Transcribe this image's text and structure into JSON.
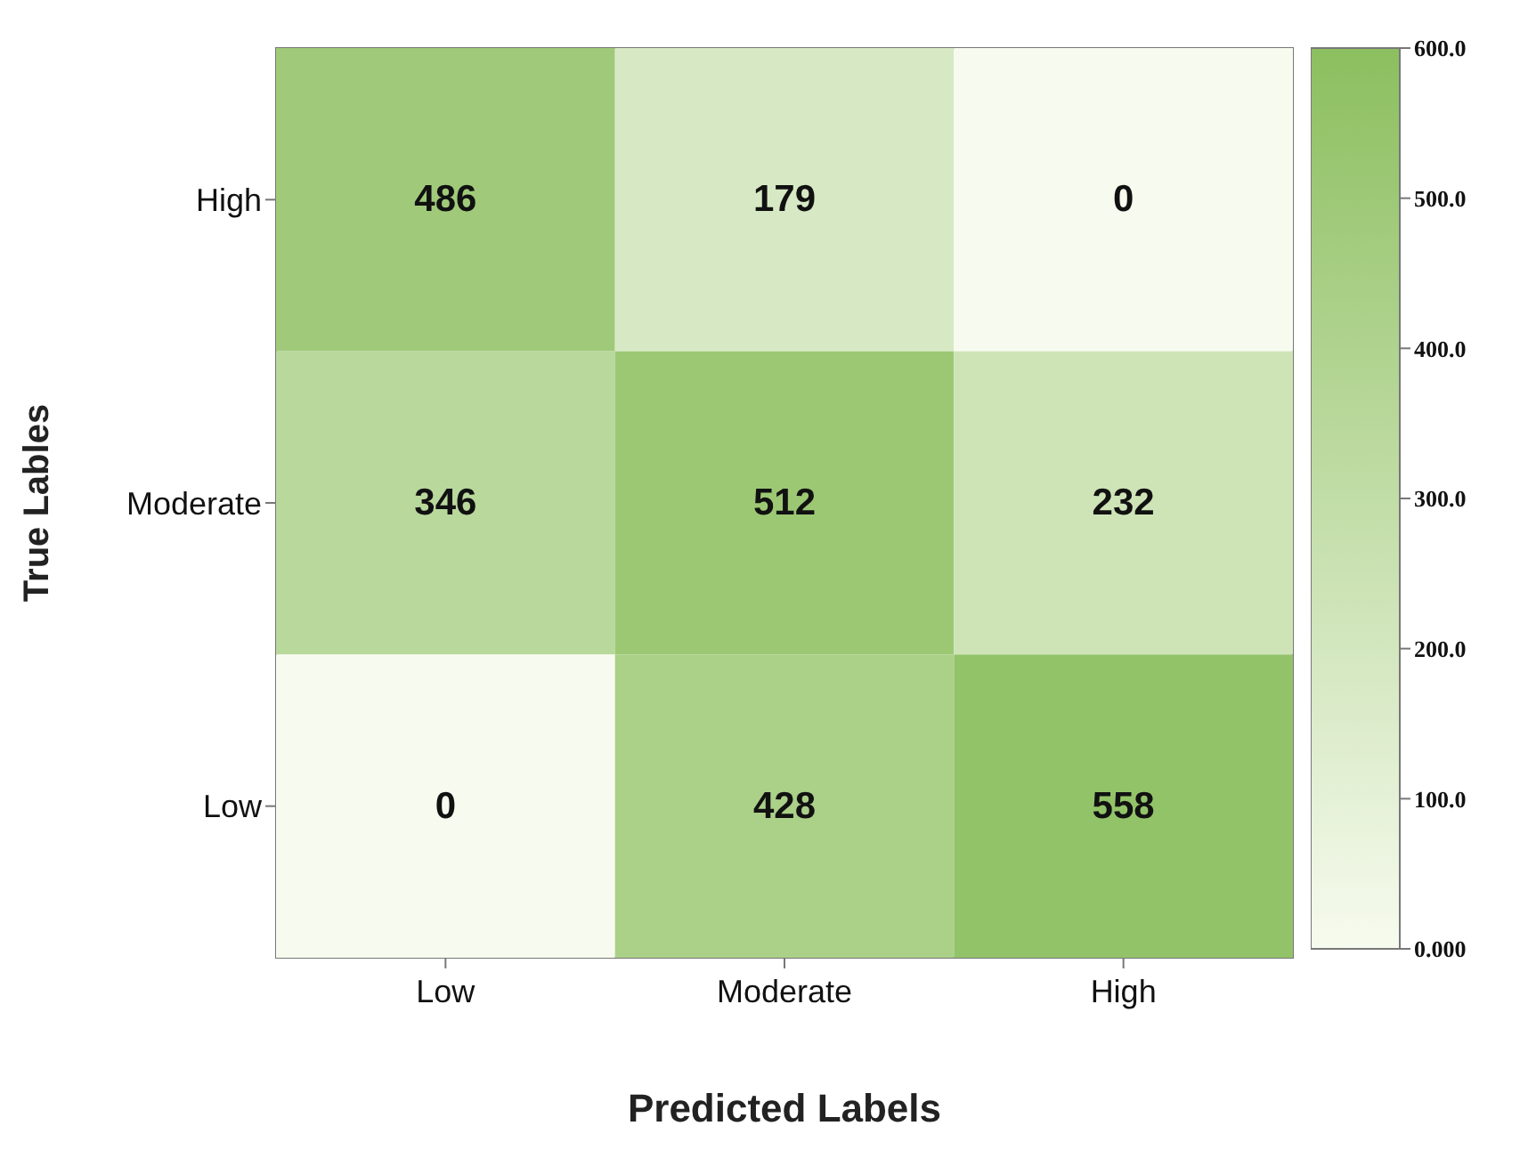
{
  "chart_data": {
    "type": "heatmap",
    "xlabel": "Predicted Labels",
    "ylabel": "True Lables",
    "categories": [
      "Low",
      "Moderate",
      "High"
    ],
    "y_categories": [
      "High",
      "Moderate",
      "Low"
    ],
    "cells": [
      [
        486,
        179,
        0
      ],
      [
        346,
        512,
        232
      ],
      [
        0,
        428,
        558
      ]
    ],
    "data_labels": true,
    "clim": [
      0,
      600
    ],
    "cticks": [
      {
        "value": 0,
        "label": "0.000"
      },
      {
        "value": 100,
        "label": "100.0"
      },
      {
        "value": 200,
        "label": "200.0"
      },
      {
        "value": 300,
        "label": "300.0"
      },
      {
        "value": 400,
        "label": "400.0"
      },
      {
        "value": 500,
        "label": "500.0"
      },
      {
        "value": 600,
        "label": "600.0"
      }
    ]
  }
}
